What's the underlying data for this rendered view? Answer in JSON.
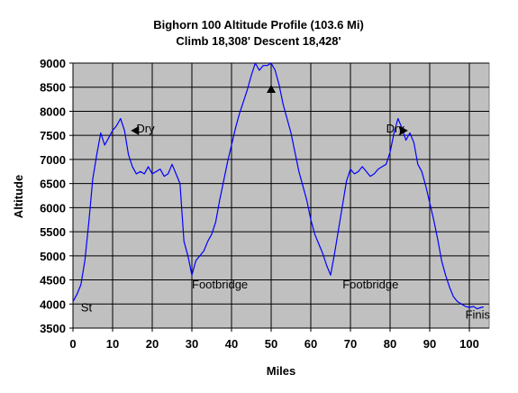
{
  "chart_data": {
    "type": "line",
    "title": "Bighorn 100 Altitude Profile (103.6 Mi)",
    "subtitle": "Climb 18,308' Descent 18,428'",
    "xlabel": "Miles",
    "ylabel": "Altitude",
    "xlim": [
      0,
      105
    ],
    "ylim": [
      3500,
      9000
    ],
    "x_ticks": [
      "0",
      "10",
      "20",
      "30",
      "40",
      "50",
      "60",
      "70",
      "80",
      "90",
      "100"
    ],
    "y_ticks": [
      "3500",
      "4000",
      "4500",
      "5000",
      "5500",
      "6000",
      "6500",
      "7000",
      "7500",
      "8000",
      "8500",
      "9000"
    ],
    "grid": true,
    "plot_background": "#c0c0c0",
    "line_color": "#0000ff",
    "series": [
      {
        "x": [
          0,
          1,
          2,
          3,
          4,
          5,
          6,
          7,
          8,
          9,
          10,
          11,
          12,
          13,
          14,
          15,
          16,
          17,
          18,
          19,
          20,
          21,
          22,
          23,
          24,
          25,
          26,
          27,
          28,
          29,
          30,
          31,
          32,
          33,
          34,
          35,
          36,
          37,
          38,
          39,
          40,
          41,
          42,
          43,
          44,
          45,
          46,
          47,
          48,
          49,
          50,
          51,
          52,
          53,
          54,
          55,
          56,
          57,
          58,
          59,
          60,
          61,
          62,
          63,
          64,
          65,
          66,
          67,
          68,
          69,
          70,
          71,
          72,
          73,
          74,
          75,
          76,
          77,
          78,
          79,
          80,
          81,
          82,
          83,
          84,
          85,
          86,
          87,
          88,
          89,
          90,
          91,
          92,
          93,
          94,
          95,
          96,
          97,
          98,
          99,
          100,
          101,
          102,
          103,
          103.6
        ],
        "y": [
          4050,
          4200,
          4400,
          4900,
          5700,
          6600,
          7100,
          7550,
          7300,
          7450,
          7600,
          7700,
          7850,
          7600,
          7100,
          6850,
          6700,
          6750,
          6700,
          6850,
          6700,
          6750,
          6800,
          6650,
          6700,
          6900,
          6700,
          6500,
          5300,
          5000,
          4600,
          4900,
          5000,
          5100,
          5300,
          5450,
          5700,
          6150,
          6550,
          6950,
          7300,
          7650,
          7950,
          8200,
          8450,
          8750,
          9000,
          8850,
          8950,
          8950,
          9000,
          8850,
          8550,
          8150,
          7850,
          7550,
          7150,
          6750,
          6450,
          6150,
          5750,
          5450,
          5250,
          5050,
          4800,
          4600,
          5050,
          5550,
          6050,
          6550,
          6800,
          6700,
          6750,
          6850,
          6750,
          6650,
          6700,
          6800,
          6850,
          6900,
          7150,
          7550,
          7850,
          7650,
          7400,
          7550,
          7350,
          6900,
          6750,
          6450,
          6100,
          5750,
          5350,
          4900,
          4600,
          4350,
          4150,
          4050,
          4000,
          3950,
          3930,
          3950,
          3900,
          3930,
          3940
        ]
      }
    ],
    "annotations": [
      {
        "text": "Dry",
        "x": 16,
        "y": 7560
      },
      {
        "text": "Footbridge",
        "x": 30,
        "y": 4320
      },
      {
        "text": "Footbridge",
        "x": 68,
        "y": 4320
      },
      {
        "text": "Dry",
        "x": 79,
        "y": 7560
      },
      {
        "text": "St",
        "x": 2,
        "y": 3850
      },
      {
        "text": "Finis",
        "x": 99,
        "y": 3700
      }
    ],
    "arrow_markers": [
      {
        "name": "dry-arrow-left",
        "direction": "left",
        "x": 14.6,
        "y": 7600
      },
      {
        "name": "summit-arrow-up",
        "direction": "up",
        "x": 50,
        "y": 8550
      },
      {
        "name": "dry-arrow-right",
        "direction": "right",
        "x": 84.5,
        "y": 7600
      }
    ]
  }
}
